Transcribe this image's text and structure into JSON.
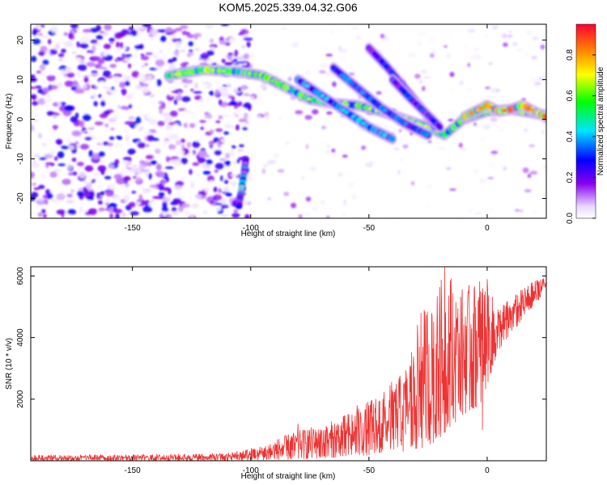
{
  "figure": {
    "title": "KOM5.2025.339.04.32.G06"
  },
  "chart_data": [
    {
      "type": "heatmap",
      "name": "spectrogram",
      "xlabel": "Height of straight line (km)",
      "ylabel": "Frequency (Hz)",
      "xlim": [
        -193,
        25
      ],
      "ylim": [
        -25,
        24
      ],
      "xticks": [
        -150,
        -100,
        -50,
        0
      ],
      "yticks": [
        -20,
        -10,
        0,
        10,
        20
      ],
      "colorbar": {
        "label": "Normalized spectral amplitude",
        "range": [
          0,
          0.95
        ],
        "ticks": [
          0.0,
          0.2,
          0.4,
          0.6,
          0.8
        ]
      },
      "ridges": [
        {
          "name": "main-trend",
          "points": [
            [
              -135,
              11
            ],
            [
              -120,
              12.5
            ],
            [
              -105,
              12
            ],
            [
              -95,
              11
            ],
            [
              -85,
              8
            ],
            [
              -75,
              5
            ],
            [
              -65,
              4
            ],
            [
              -55,
              3.5
            ],
            [
              -45,
              2
            ],
            [
              -35,
              0
            ],
            [
              -25,
              -2
            ],
            [
              -18,
              -4
            ],
            [
              -10,
              0
            ],
            [
              0,
              2
            ],
            [
              10,
              2.5
            ],
            [
              20,
              1.5
            ],
            [
              25,
              1
            ]
          ],
          "peak": 0.7
        },
        {
          "name": "harmonic-a",
          "points": [
            [
              -80,
              10
            ],
            [
              -70,
              6
            ],
            [
              -60,
              2
            ],
            [
              -50,
              -2
            ],
            [
              -40,
              -5
            ]
          ],
          "peak": 0.45
        },
        {
          "name": "harmonic-b",
          "points": [
            [
              -65,
              13
            ],
            [
              -55,
              8
            ],
            [
              -45,
              3
            ],
            [
              -35,
              -1
            ],
            [
              -25,
              -4
            ]
          ],
          "peak": 0.4
        },
        {
          "name": "harmonic-c",
          "points": [
            [
              -50,
              18
            ],
            [
              -42,
              13
            ],
            [
              -35,
              8
            ],
            [
              -28,
              3
            ],
            [
              -22,
              -2
            ]
          ],
          "peak": 0.35
        },
        {
          "name": "harmonic-d",
          "points": [
            [
              -40,
              10
            ],
            [
              -32,
              5
            ],
            [
              -25,
              1
            ],
            [
              -20,
              -2
            ]
          ],
          "peak": 0.35
        },
        {
          "name": "hot-segment",
          "points": [
            [
              -10,
              0.5
            ],
            [
              -5,
              2
            ],
            [
              0,
              3.5
            ],
            [
              5,
              2
            ],
            [
              10,
              2.5
            ],
            [
              15,
              3.5
            ],
            [
              20,
              2
            ],
            [
              25,
              0.5
            ]
          ],
          "peak": 0.9
        },
        {
          "name": "vertical-streak",
          "points": [
            [
              -102,
              -10
            ],
            [
              -104,
              -15
            ],
            [
              -105,
              -22
            ]
          ],
          "peak": 0.5
        }
      ],
      "noise_region": {
        "x_range": [
          -193,
          -100
        ],
        "y_range": [
          -25,
          24
        ],
        "max_amplitude": 0.3
      }
    },
    {
      "type": "line",
      "name": "snr",
      "xlabel": "Height of straight line (km)",
      "ylabel": "SNR (10 * v/v)",
      "xlim": [
        -193,
        25
      ],
      "ylim": [
        0,
        6300
      ],
      "xticks": [
        -150,
        -100,
        -50,
        0
      ],
      "yticks": [
        2000,
        4000,
        6000
      ],
      "color": "#ee3333",
      "envelope": [
        {
          "x": -193,
          "low": 0,
          "high": 200
        },
        {
          "x": -150,
          "low": 0,
          "high": 200
        },
        {
          "x": -110,
          "low": 0,
          "high": 250
        },
        {
          "x": -95,
          "low": 20,
          "high": 500
        },
        {
          "x": -80,
          "low": 50,
          "high": 1000
        },
        {
          "x": -65,
          "low": 100,
          "high": 1300
        },
        {
          "x": -55,
          "low": 150,
          "high": 1700
        },
        {
          "x": -45,
          "low": 200,
          "high": 2200
        },
        {
          "x": -35,
          "low": 300,
          "high": 3000
        },
        {
          "x": -28,
          "low": 400,
          "high": 4800
        },
        {
          "x": -22,
          "low": 600,
          "high": 5500
        },
        {
          "x": -18,
          "low": 900,
          "high": 6300
        },
        {
          "x": -10,
          "low": 1500,
          "high": 5600
        },
        {
          "x": -3,
          "low": 1800,
          "high": 6000
        },
        {
          "x": 5,
          "low": 3600,
          "high": 5000
        },
        {
          "x": 15,
          "low": 4600,
          "high": 5600
        },
        {
          "x": 25,
          "low": 5500,
          "high": 6100
        }
      ],
      "spikes": [
        {
          "x": -18,
          "value": 6300
        },
        {
          "x": -28,
          "value": 4800
        },
        {
          "x": -22,
          "value": 1500
        },
        {
          "x": -2,
          "value": 1000
        },
        {
          "x": -15,
          "value": 1800
        },
        {
          "x": 0,
          "value": 5900
        },
        {
          "x": -80,
          "value": 1200
        },
        {
          "x": -55,
          "value": 1800
        }
      ]
    }
  ]
}
